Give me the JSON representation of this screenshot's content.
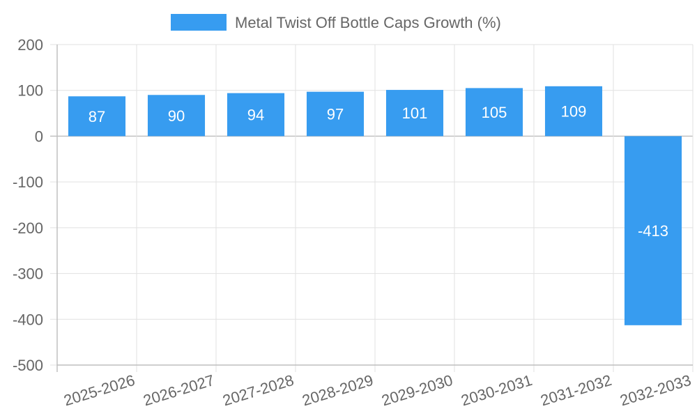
{
  "chart_data": {
    "type": "bar",
    "categories": [
      "2025-2026",
      "2026-2027",
      "2027-2028",
      "2028-2029",
      "2029-2030",
      "2030-2031",
      "2031-2032",
      "2032-2033"
    ],
    "series": [
      {
        "name": "Metal Twist Off Bottle Caps Growth (%)",
        "values": [
          87,
          90,
          94,
          97,
          101,
          105,
          109,
          -413
        ]
      }
    ],
    "ylim": [
      -500,
      200
    ],
    "yticks": [
      200,
      100,
      0,
      -100,
      -200,
      -300,
      -400,
      -500
    ],
    "grid": true,
    "legend_position": "top-center",
    "bar_color": "#379cf0"
  }
}
